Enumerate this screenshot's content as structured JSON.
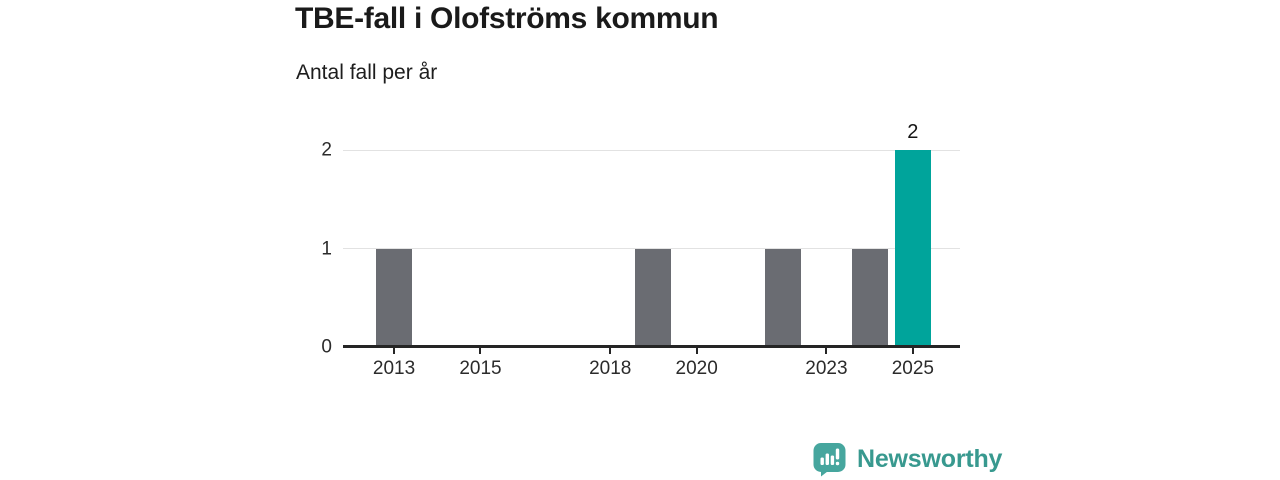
{
  "header": {
    "title": "TBE-fall i Olofströms kommun",
    "subtitle": "Antal fall per år"
  },
  "chart_data": {
    "type": "bar",
    "title": "TBE-fall i Olofströms kommun",
    "subtitle": "Antal fall per år",
    "categories": [
      2012,
      2013,
      2014,
      2015,
      2016,
      2017,
      2018,
      2019,
      2020,
      2021,
      2022,
      2023,
      2024,
      2025
    ],
    "values": [
      0,
      1,
      0,
      0,
      0,
      0,
      0,
      1,
      0,
      0,
      1,
      0,
      1,
      2
    ],
    "highlight_year": 2025,
    "bar_labels": [
      {
        "year": 2025,
        "text": "2"
      }
    ],
    "xticks": [
      "2013",
      "2015",
      "2018",
      "2020",
      "2023",
      "2025"
    ],
    "xtick_years": [
      2013,
      2015,
      2018,
      2020,
      2023,
      2025
    ],
    "yticks": [
      0,
      1,
      2
    ],
    "xlim": [
      2011.82,
      2026.09
    ],
    "ylim": [
      0,
      2
    ],
    "grid": true,
    "legend_position": "none",
    "bar_color": "#6a6c72",
    "highlight_color": "#00a49b",
    "grid_color": "#e2e2e2",
    "axis_color": "#252525",
    "tick_label_color": "#2b2b2b"
  },
  "footer": {
    "brand": "Newsworthy",
    "brand_color": "#38998f",
    "logo_icon": "newsworthy-speech-bubble-bar-chart-icon",
    "logo_icon_color": "#46a69e"
  }
}
